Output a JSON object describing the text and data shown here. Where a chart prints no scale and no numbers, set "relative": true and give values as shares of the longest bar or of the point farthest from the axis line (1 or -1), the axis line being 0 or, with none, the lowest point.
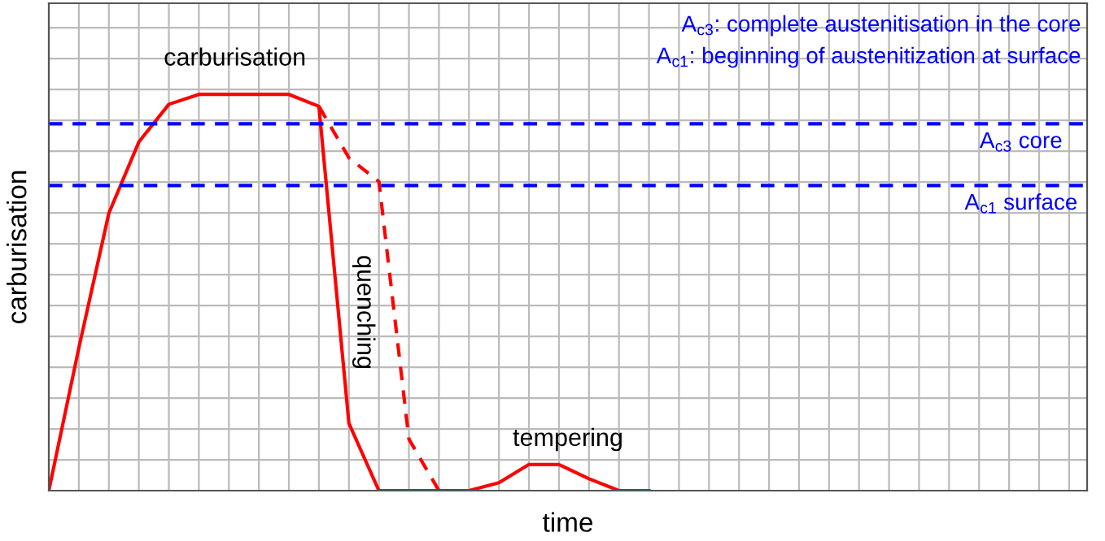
{
  "chart_data": {
    "type": "line",
    "relative": true,
    "xlabel": "time",
    "ylabel": "carburisation",
    "grid": true,
    "marker": "none",
    "categories": [
      null,
      null,
      null,
      null,
      null,
      null,
      null,
      null,
      null,
      null,
      null,
      null,
      null,
      null,
      null,
      null,
      null,
      null,
      null,
      null,
      null,
      null,
      null,
      null,
      null,
      null,
      null,
      null,
      null,
      null,
      null,
      null,
      null,
      null,
      null
    ],
    "series": [
      {
        "color": "#ff0000",
        "line_style": "solid",
        "values": [
          0,
          0.36,
          0.7,
          0.88,
          0.975,
          1,
          1,
          1,
          1,
          0.97,
          0.17,
          0,
          0,
          0,
          0,
          0.02,
          0.066,
          0.066,
          0.03,
          0,
          0,
          null,
          null,
          null,
          null,
          null,
          null,
          null,
          null,
          null,
          null,
          null,
          null,
          null,
          null
        ]
      },
      {
        "color": "#ff0000",
        "line_style": "dashed",
        "values": [
          null,
          null,
          null,
          null,
          null,
          null,
          null,
          null,
          null,
          0.97,
          0.84,
          0.78,
          0.13,
          0,
          null,
          null,
          null,
          null,
          null,
          null,
          null,
          null,
          null,
          null,
          null,
          null,
          null,
          null,
          null,
          null,
          null,
          null,
          null,
          null,
          null
        ]
      }
    ],
    "ref_lines": [
      {
        "axis": "y",
        "value": 0.926,
        "label": "A$_{c3}$ core",
        "color": "#0000ff",
        "line_style": "dashed"
      },
      {
        "axis": "y",
        "value": 0.77,
        "label": "A$_{c1}$ surface",
        "color": "#0000ff",
        "line_style": "dashed"
      }
    ],
    "annotations": [
      "carburisation",
      "quenching",
      "tempering",
      "A$_{c3}$: complete austenitisation in the core",
      "A$_{c1}$: beginning of austenitization at surface"
    ]
  }
}
